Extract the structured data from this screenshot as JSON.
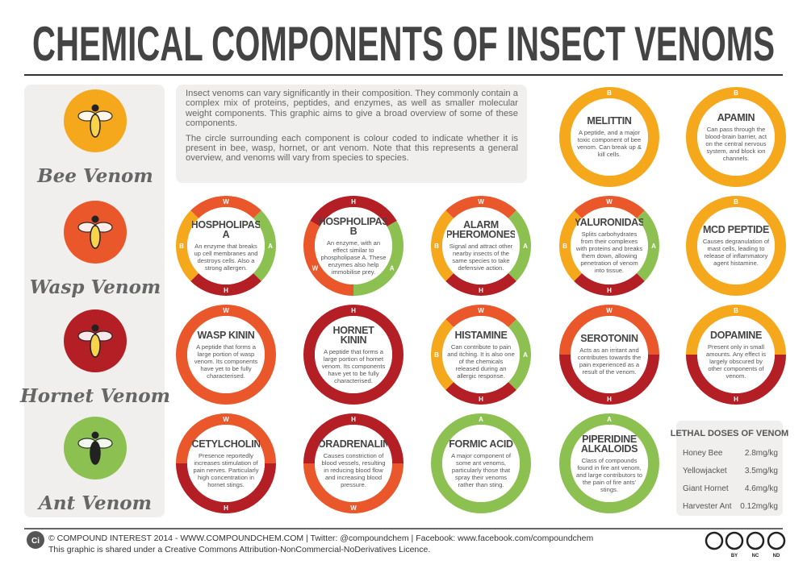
{
  "header": {
    "title": "CHEMICAL COMPONENTS OF INSECT VENOMS"
  },
  "venoms": [
    {
      "name": "Bee Venom",
      "code": "B",
      "color": "#f5a81c"
    },
    {
      "name": "Wasp Venom",
      "code": "W",
      "color": "#e9572a"
    },
    {
      "name": "Hornet Venom",
      "code": "H",
      "color": "#b31f24"
    },
    {
      "name": "Ant Venom",
      "code": "A",
      "color": "#8cc152"
    }
  ],
  "intro": [
    "Insect venoms can vary significantly in their composition. They commonly contain a complex mix of proteins, peptides, and enzymes, as well as smaller molecular weight components. This graphic aims to give a broad overview of some of these components.",
    "The circle surrounding each component is colour coded to indicate whether it is present in bee, wasp, hornet, or ant venom. Note that this represents a general overview, and venoms will vary from species to species."
  ],
  "components": [
    {
      "name": "MELITTIN",
      "description": "A peptide, and a major toxic component of bee venom. Can break up & kill cells.",
      "venoms": [
        "B"
      ]
    },
    {
      "name": "APAMIN",
      "description": "Can pass through the blood-brain barrier, act on the central nervous system, and block ion channels.",
      "venoms": [
        "B"
      ]
    },
    {
      "name": "PHOSPHOLIPASE A",
      "description": "An enzyme that breaks up cell membranes and destroys cells. Also a strong allergen.",
      "venoms": [
        "W",
        "A",
        "H",
        "B"
      ]
    },
    {
      "name": "PHOSPHOLIPASE B",
      "description": "An enzyme, with an effect similar to phospholipase A. These enzymes also help immobilise prey.",
      "venoms": [
        "H",
        "A",
        "W"
      ]
    },
    {
      "name": "ALARM PHEROMONES",
      "description": "Signal and attract other nearby insects of the same species to take defensive action.",
      "venoms": [
        "W",
        "A",
        "H",
        "B"
      ]
    },
    {
      "name": "HYALURONIDASE",
      "description": "Splits carbohydrates from their complexes with proteins and breaks them down, allowing penetration of venom into tissue.",
      "venoms": [
        "W",
        "A",
        "H",
        "B"
      ]
    },
    {
      "name": "MCD PEPTIDE",
      "description": "Causes degranulation of mast cells, leading to release of inflammatory agent histamine.",
      "venoms": [
        "B"
      ]
    },
    {
      "name": "WASP KININ",
      "description": "A peptide that forms a large portion of wasp venom. Its components have yet to be fully characterised.",
      "venoms": [
        "W"
      ]
    },
    {
      "name": "HORNET KININ",
      "description": "A peptide that forms a large portion of hornet venom. Its components have yet to be fully characterised.",
      "venoms": [
        "H"
      ]
    },
    {
      "name": "HISTAMINE",
      "description": "Can contribute to pain and itching. It is also one of the chemicals released during an allergic response.",
      "venoms": [
        "W",
        "A",
        "H",
        "B"
      ]
    },
    {
      "name": "SEROTONIN",
      "description": "Acts as an irritant and contributes towards the pain experienced as a result of the venom.",
      "venoms": [
        "W",
        "H"
      ]
    },
    {
      "name": "DOPAMINE",
      "description": "Present only in small amounts. Any effect is largely obscured by other components of venom.",
      "venoms": [
        "B",
        "H"
      ]
    },
    {
      "name": "ACETYLCHOLINE",
      "description": "Presence reportedly increases stimulation of pain nerves. Particularly high concentration in hornet stings.",
      "venoms": [
        "W",
        "H"
      ]
    },
    {
      "name": "NORADRENALINE",
      "description": "Causes constriction of blood vessels, resulting in reducing blood flow and increasing blood pressure.",
      "venoms": [
        "H",
        "W"
      ]
    },
    {
      "name": "FORMIC ACID",
      "description": "A major component of some ant venoms, particularly those that spray their venoms rather than sting.",
      "venoms": [
        "A"
      ]
    },
    {
      "name": "PIPERIDINE ALKALOIDS",
      "description": "Class of compounds found in fire ant venom, and large contributors to the pain of fire ants' stings.",
      "venoms": [
        "A"
      ]
    }
  ],
  "lethal_doses": {
    "title": "LETHAL DOSES OF VENOM",
    "rows": [
      [
        "Honey Bee",
        "2.8mg/kg"
      ],
      [
        "Yellowjacket",
        "3.5mg/kg"
      ],
      [
        "Giant Hornet",
        "4.6mg/kg"
      ],
      [
        "Harvester Ant",
        "0.12mg/kg"
      ]
    ]
  },
  "footer": {
    "logo": "Ci",
    "credit": "© COMPOUND INTEREST 2014 - WWW.COMPOUNDCHEM.COM | Twitter: @compoundchem | Facebook: www.facebook.com/compoundchem",
    "licence": "This graphic is shared under a Creative Commons Attribution-NonCommercial-NoDerivatives Licence.",
    "cc_labels": [
      "BY",
      "NC",
      "ND"
    ]
  }
}
